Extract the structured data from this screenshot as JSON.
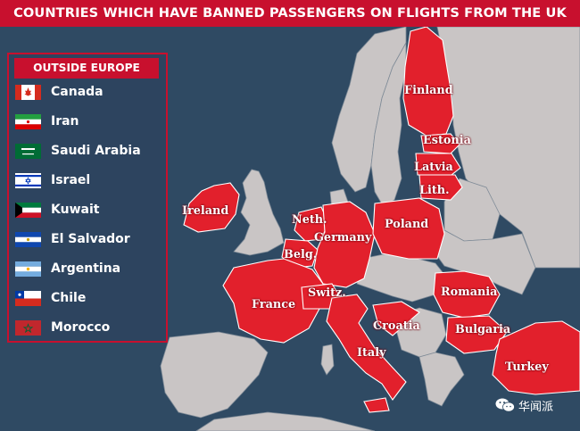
{
  "title": "COUNTRIES WHICH HAVE BANNED PASSENGERS ON FLIGHTS FROM THE UK",
  "colors": {
    "sea": "#2f4a63",
    "land": "#c9c5c5",
    "banned": "#e2202c",
    "accent": "#c8102e",
    "legend_bg": "#2d445f"
  },
  "legend": {
    "header": "OUTSIDE EUROPE",
    "items": [
      {
        "label": "Canada",
        "flag": "canada-flag"
      },
      {
        "label": "Iran",
        "flag": "iran-flag"
      },
      {
        "label": "Saudi Arabia",
        "flag": "saudi-arabia-flag"
      },
      {
        "label": "Israel",
        "flag": "israel-flag"
      },
      {
        "label": "Kuwait",
        "flag": "kuwait-flag"
      },
      {
        "label": "El Salvador",
        "flag": "el-salvador-flag"
      },
      {
        "label": "Argentina",
        "flag": "argentina-flag"
      },
      {
        "label": "Chile",
        "flag": "chile-flag"
      },
      {
        "label": "Morocco",
        "flag": "morocco-flag"
      }
    ]
  },
  "countries": {
    "finland": "Finland",
    "estonia": "Estonia",
    "latvia": "Latvia",
    "lithuania": "Lith.",
    "ireland": "Ireland",
    "netherlands": "Neth.",
    "germany": "Germany",
    "poland": "Poland",
    "belgium": "Belg.",
    "france": "France",
    "switzerland": "Switz.",
    "romania": "Romania",
    "croatia": "Croatia",
    "bulgaria": "Bulgaria",
    "italy": "Italy",
    "turkey": "Turkey"
  },
  "watermark": {
    "text": "华闻派",
    "icon": "wechat-icon"
  }
}
